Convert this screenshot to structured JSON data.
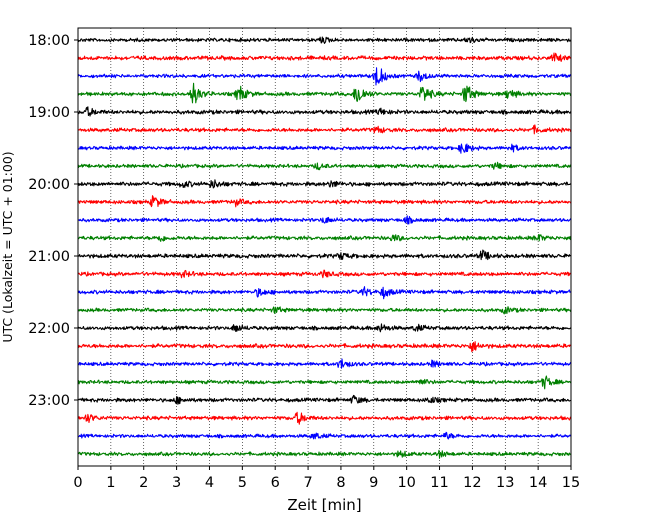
{
  "chart_data": {
    "type": "line",
    "title": "",
    "xlabel": "Zeit  [min]",
    "ylabel": "UTC (Lokalzeit = UTC + 01:00)",
    "xlim": [
      0,
      15
    ],
    "x_ticks": [
      "0",
      "1",
      "2",
      "3",
      "4",
      "5",
      "6",
      "7",
      "8",
      "9",
      "10",
      "11",
      "12",
      "13",
      "14",
      "15"
    ],
    "y_ticks": [
      "18:00",
      "19:00",
      "20:00",
      "21:00",
      "22:00",
      "23:00"
    ],
    "grid": true,
    "trace_start": "18:00",
    "trace_step_minutes": 15,
    "trace_colors": [
      "#000000",
      "#ff0000",
      "#0000ff",
      "#008000"
    ],
    "traces": [
      {
        "base_amp": 1.4,
        "events": [
          [
            7.4,
            3
          ],
          [
            11.9,
            3
          ]
        ]
      },
      {
        "base_amp": 1.6,
        "events": [
          [
            14.5,
            4
          ]
        ]
      },
      {
        "base_amp": 1.4,
        "events": [
          [
            9.1,
            12
          ],
          [
            10.4,
            5
          ]
        ]
      },
      {
        "base_amp": 1.5,
        "events": [
          [
            3.5,
            11
          ],
          [
            4.9,
            8
          ],
          [
            8.5,
            11
          ],
          [
            10.5,
            9
          ],
          [
            11.8,
            10
          ],
          [
            13.1,
            5
          ]
        ]
      },
      {
        "base_amp": 1.6,
        "events": [
          [
            0.3,
            4
          ],
          [
            9.2,
            3
          ]
        ]
      },
      {
        "base_amp": 1.5,
        "events": [
          [
            9.1,
            3
          ],
          [
            13.9,
            3
          ]
        ]
      },
      {
        "base_amp": 1.4,
        "events": [
          [
            11.7,
            6
          ],
          [
            13.2,
            3
          ]
        ]
      },
      {
        "base_amp": 1.4,
        "events": [
          [
            7.3,
            3
          ],
          [
            12.7,
            3
          ]
        ]
      },
      {
        "base_amp": 1.6,
        "events": [
          [
            3.2,
            3
          ],
          [
            4.1,
            4
          ],
          [
            7.7,
            3
          ]
        ]
      },
      {
        "base_amp": 1.5,
        "events": [
          [
            2.3,
            6
          ],
          [
            4.8,
            3
          ]
        ]
      },
      {
        "base_amp": 1.4,
        "events": [
          [
            7.5,
            3
          ],
          [
            10.0,
            3
          ]
        ]
      },
      {
        "base_amp": 1.5,
        "events": [
          [
            2.5,
            3
          ],
          [
            9.6,
            3
          ],
          [
            14.0,
            3
          ]
        ]
      },
      {
        "base_amp": 1.6,
        "events": [
          [
            8.0,
            3
          ],
          [
            12.3,
            5
          ]
        ]
      },
      {
        "base_amp": 1.5,
        "events": [
          [
            7.5,
            3
          ],
          [
            3.2,
            3
          ]
        ]
      },
      {
        "base_amp": 1.5,
        "events": [
          [
            5.5,
            4
          ],
          [
            8.7,
            4
          ],
          [
            9.3,
            5
          ]
        ]
      },
      {
        "base_amp": 1.4,
        "events": [
          [
            6.0,
            3
          ],
          [
            13.0,
            3
          ]
        ]
      },
      {
        "base_amp": 1.5,
        "events": [
          [
            4.8,
            4
          ],
          [
            9.2,
            4
          ],
          [
            10.3,
            3
          ]
        ]
      },
      {
        "base_amp": 1.6,
        "events": [
          [
            12.0,
            5
          ]
        ]
      },
      {
        "base_amp": 1.4,
        "events": [
          [
            8.0,
            5
          ],
          [
            10.8,
            3
          ]
        ]
      },
      {
        "base_amp": 1.4,
        "events": [
          [
            10.4,
            3
          ],
          [
            14.2,
            6
          ]
        ]
      },
      {
        "base_amp": 1.5,
        "events": [
          [
            3.0,
            3
          ],
          [
            8.4,
            4
          ],
          [
            10.7,
            3
          ]
        ]
      },
      {
        "base_amp": 1.5,
        "events": [
          [
            0.3,
            4
          ],
          [
            6.7,
            6
          ]
        ]
      },
      {
        "base_amp": 1.4,
        "events": [
          [
            7.2,
            3
          ],
          [
            11.2,
            3
          ]
        ]
      },
      {
        "base_amp": 1.4,
        "events": [
          [
            9.8,
            3
          ],
          [
            11.0,
            3
          ]
        ]
      }
    ]
  }
}
